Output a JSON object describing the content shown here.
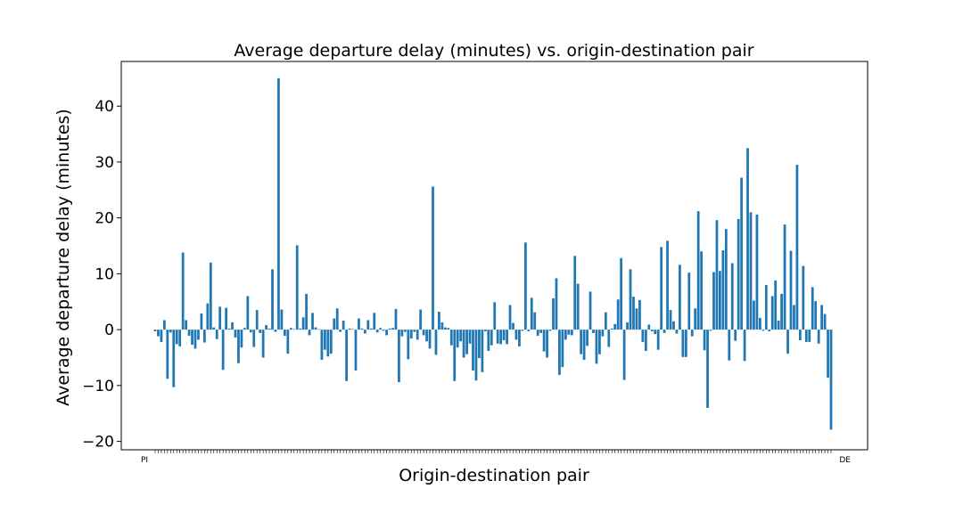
{
  "chart_data": {
    "type": "bar",
    "title": "Average departure delay (minutes) vs. origin-destination pair",
    "xlabel": "Origin-destination pair",
    "ylabel": "Average departure delay (minutes)",
    "ylim": [
      -21.5,
      48
    ],
    "yticks": [
      -20,
      -10,
      0,
      10,
      20,
      30,
      40
    ],
    "ytick_labels": [
      "−20",
      "−10",
      "0",
      "10",
      "20",
      "30",
      "40"
    ],
    "first_category_label": "PI",
    "last_category_label": "DE",
    "bar_color": "#1f77b4",
    "grid": false,
    "values": [
      -0.3,
      -1.2,
      -2.2,
      1.7,
      -8.8,
      -0.5,
      -10.3,
      -2.6,
      -3.0,
      13.8,
      1.7,
      -1.1,
      -2.7,
      -3.4,
      -1.8,
      2.9,
      -2.3,
      4.7,
      12.0,
      0.4,
      -1.7,
      4.1,
      -7.2,
      3.9,
      0.2,
      1.3,
      -1.4,
      -6.0,
      -3.2,
      0.3,
      6.0,
      -0.5,
      -3.1,
      3.5,
      -0.6,
      -5.0,
      0.8,
      0.2,
      10.8,
      -0.4,
      45.0,
      3.6,
      -1.1,
      -4.3,
      0.3,
      0.1,
      15.1,
      0.2,
      2.2,
      6.4,
      -1.0,
      3.0,
      0.4,
      0.1,
      -5.4,
      -3.6,
      -4.8,
      -4.3,
      2.0,
      3.8,
      -0.4,
      1.6,
      -9.2,
      0.2,
      0.1,
      -7.3,
      2.0,
      0.2,
      -0.7,
      1.7,
      0.2,
      3.0,
      -0.5,
      0.3,
      -0.2,
      -1.0,
      0.2,
      0.3,
      3.7,
      -9.4,
      -1.2,
      -0.4,
      -5.3,
      -1.6,
      -0.4,
      -1.8,
      3.6,
      -1.0,
      -2.1,
      -3.4,
      25.6,
      -4.5,
      3.2,
      1.3,
      0.4,
      0.3,
      -2.8,
      -9.2,
      -3.2,
      -2.1,
      -5.0,
      -4.4,
      -2.5,
      -7.3,
      -9.1,
      -5.1,
      -7.6,
      -0.3,
      -3.8,
      -2.8,
      4.9,
      -2.5,
      -2.6,
      -1.9,
      -2.6,
      4.4,
      1.2,
      -1.8,
      -3.0,
      -0.2,
      15.6,
      -0.3,
      5.7,
      3.1,
      -1.1,
      -0.6,
      -3.9,
      -5.0,
      -0.2,
      5.6,
      9.2,
      -8.1,
      -6.7,
      -1.8,
      -0.9,
      -1.0,
      13.2,
      8.2,
      -4.4,
      -5.4,
      -2.9,
      6.8,
      -0.6,
      -6.1,
      -4.4,
      -1.2,
      3.1,
      -3.1,
      0.2,
      1.0,
      5.4,
      12.8,
      -9.0,
      1.3,
      10.8,
      5.9,
      3.8,
      5.3,
      -2.2,
      -3.8,
      0.9,
      -0.3,
      -0.8,
      -3.6,
      14.8,
      -0.6,
      15.9,
      3.5,
      1.5,
      -0.7,
      11.6,
      -4.9,
      -4.9,
      10.2,
      -1.2,
      3.8,
      21.2,
      14.0,
      -3.7,
      -14.0,
      -0.2,
      10.3,
      19.6,
      10.5,
      14.2,
      18.0,
      -5.5,
      11.9,
      -2.0,
      19.8,
      27.2,
      -5.6,
      32.5,
      21.0,
      5.2,
      20.6,
      2.1,
      -0.2,
      8.0,
      -0.3,
      6.0,
      8.8,
      1.6,
      6.4,
      18.8,
      -4.3,
      14.1,
      4.4,
      29.5,
      -1.9,
      11.4,
      -2.2,
      -2.2,
      7.6,
      5.1,
      -2.5,
      4.4,
      2.8,
      -8.6,
      -17.9
    ]
  }
}
